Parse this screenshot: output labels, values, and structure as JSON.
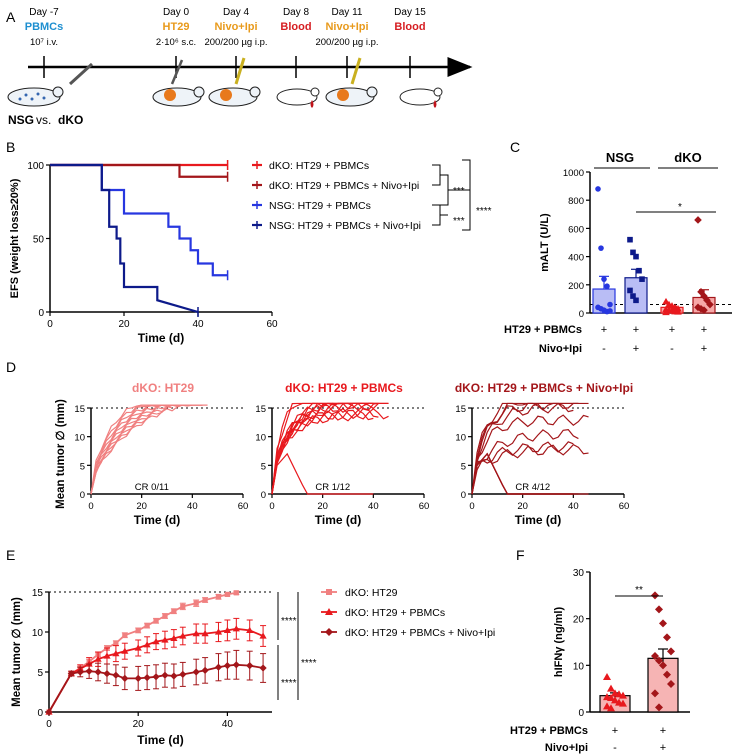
{
  "colors": {
    "light_red": "#f08080",
    "red": "#e8191e",
    "dark_red": "#a3161a",
    "blue": "#2737e0",
    "navy": "#0d1a8a",
    "blood": "#d61e22",
    "orange": "#e89a1c",
    "teal": "#1e8fd0",
    "nsg_bar": "#b9bdf5",
    "dko_bar": "#f7a8a8",
    "f_bar": "#f6b4b4"
  },
  "panel_labels": [
    "A",
    "B",
    "C",
    "D",
    "E",
    "F"
  ],
  "panel_a": {
    "events": [
      {
        "day": "Day -7",
        "label": "PBMCs",
        "label_color": "#1e8fd0",
        "detail": "10⁷ i.v."
      },
      {
        "day": "Day 0",
        "label": "HT29",
        "label_color": "#e89a1c",
        "detail": "2·10⁶ s.c."
      },
      {
        "day": "Day 4",
        "label": "Nivo+Ipi",
        "label_color": "#e89a1c",
        "detail": "200/200 µg i.p."
      },
      {
        "day": "Day 8",
        "label": "Blood",
        "label_color": "#d61e22",
        "detail": ""
      },
      {
        "day": "Day 11",
        "label": "Nivo+Ipi",
        "label_color": "#e89a1c",
        "detail": "200/200 µg i.p."
      },
      {
        "day": "Day 15",
        "label": "Blood",
        "label_color": "#d61e22",
        "detail": ""
      }
    ],
    "mouse_label_a": "NSG",
    "mouse_label_vs": "vs.",
    "mouse_label_b": "dKO"
  },
  "chart_data": [
    {
      "id": "B",
      "type": "line",
      "subtype": "kaplan-meier",
      "xlabel": "Time (d)",
      "ylabel": "EFS (weight loss≥20%)",
      "xlim": [
        0,
        60
      ],
      "ylim": [
        0,
        100
      ],
      "xticks": [
        "0",
        "20",
        "40",
        "60"
      ],
      "yticks": [
        "0",
        "50",
        "100"
      ],
      "series": [
        {
          "name": "dKO: HT29 + PBMCs",
          "color": "#e8191e",
          "x": [
            0,
            48
          ],
          "y": [
            100,
            100
          ]
        },
        {
          "name": "dKO: HT29 + PBMCs + Nivo+Ipi",
          "color": "#a3161a",
          "x": [
            0,
            35,
            35,
            48
          ],
          "y": [
            100,
            100,
            92,
            92
          ]
        },
        {
          "name": "NSG: HT29 + PBMCs",
          "color": "#2737e0",
          "x": [
            0,
            14,
            14,
            20,
            20,
            22,
            22,
            32,
            32,
            35,
            35,
            38,
            38,
            40,
            40,
            44,
            44,
            48
          ],
          "y": [
            100,
            100,
            83,
            83,
            67,
            67,
            67,
            67,
            58,
            58,
            50,
            50,
            42,
            42,
            33,
            33,
            25,
            25
          ]
        },
        {
          "name": "NSG: HT29 + PBMCs + Nivo+Ipi",
          "color": "#0d1a8a",
          "x": [
            0,
            14,
            14,
            16,
            16,
            18,
            18,
            19,
            19,
            20,
            20,
            22,
            22,
            29,
            29,
            40
          ],
          "y": [
            100,
            100,
            83,
            83,
            58,
            58,
            50,
            50,
            33,
            33,
            17,
            17,
            17,
            17,
            8,
            0
          ]
        }
      ],
      "stats": [
        "***",
        "***",
        "****"
      ]
    },
    {
      "id": "C",
      "type": "bar",
      "ylabel": "mALT (U/L)",
      "ylim": [
        0,
        1000
      ],
      "yticks": [
        "0",
        "200",
        "400",
        "600",
        "800",
        "1000"
      ],
      "groups": [
        "NSG",
        "dKO"
      ],
      "rows": [
        {
          "label": "HT29 + PBMCs",
          "marks": [
            "+",
            "+",
            "+",
            "+"
          ]
        },
        {
          "label": "Nivo+Ipi",
          "marks": [
            "-",
            "+",
            "-",
            "+"
          ]
        }
      ],
      "bars": [
        {
          "group": "NSG",
          "treatment": "HT29 + PBMCs",
          "mean": 170,
          "sem": 90,
          "points": [
            880,
            460,
            240,
            190,
            60,
            40,
            30,
            20,
            10,
            15
          ]
        },
        {
          "group": "NSG",
          "treatment": "HT29 + PBMCs + Nivo+Ipi",
          "mean": 250,
          "sem": 60,
          "points": [
            520,
            430,
            400,
            300,
            240,
            160,
            120,
            90
          ]
        },
        {
          "group": "dKO",
          "treatment": "HT29 + PBMCs",
          "mean": 40,
          "sem": 8,
          "points": [
            80,
            60,
            50,
            40,
            30,
            25,
            20,
            15,
            10,
            8,
            5
          ]
        },
        {
          "group": "dKO",
          "treatment": "HT29 + PBMCs + Nivo+Ipi",
          "mean": 110,
          "sem": 55,
          "points": [
            660,
            150,
            120,
            90,
            60,
            40,
            30,
            20
          ]
        }
      ],
      "reference_line": 60,
      "stats": [
        "*"
      ]
    },
    {
      "id": "D",
      "type": "line",
      "subtype": "spaghetti",
      "ylabel": "Mean tumor ∅ (mm)",
      "panels": [
        {
          "title": "dKO: HT29",
          "color": "#f08080",
          "cr": "CR 0/11",
          "xlabel": "Time (d)",
          "xlim": [
            0,
            60
          ],
          "ylim": [
            0,
            15
          ],
          "xticks": [
            "0",
            "20",
            "40",
            "60"
          ],
          "yticks": [
            "0",
            "5",
            "10",
            "15"
          ]
        },
        {
          "title": "dKO: HT29 + PBMCs",
          "color": "#e8191e",
          "cr": "CR 1/12",
          "xlabel": "Time (d)",
          "xlim": [
            0,
            60
          ],
          "ylim": [
            0,
            15
          ],
          "xticks": [
            "0",
            "20",
            "40",
            "60"
          ],
          "yticks": [
            "0",
            "5",
            "10",
            "15"
          ]
        },
        {
          "title": "dKO: HT29 + PBMCs + Nivo+Ipi",
          "color": "#a3161a",
          "cr": "CR 4/12",
          "xlabel": "Time (d)",
          "xlim": [
            0,
            60
          ],
          "ylim": [
            0,
            15
          ],
          "xticks": [
            "0",
            "20",
            "40",
            "60"
          ],
          "yticks": [
            "0",
            "5",
            "10",
            "15"
          ]
        }
      ]
    },
    {
      "id": "E",
      "type": "line",
      "xlabel": "Time (d)",
      "ylabel": "Mean tumor ∅ (mm)",
      "xlim": [
        0,
        50
      ],
      "ylim": [
        0,
        15
      ],
      "xticks": [
        "0",
        "20",
        "40"
      ],
      "yticks": [
        "0",
        "5",
        "10",
        "15"
      ],
      "x": [
        0,
        5,
        7,
        9,
        11,
        13,
        15,
        17,
        20,
        22,
        24,
        26,
        28,
        30,
        33,
        35,
        38,
        40,
        42,
        45,
        48
      ],
      "series": [
        {
          "name": "dKO: HT29",
          "color": "#f08080",
          "marker": "square",
          "x": [
            0,
            5,
            7,
            9,
            11,
            13,
            15,
            17,
            20,
            22,
            24,
            26,
            28,
            30,
            33,
            35,
            38,
            40,
            42
          ],
          "y": [
            0,
            4.8,
            5.5,
            6.3,
            7.2,
            8.0,
            8.6,
            9.6,
            10.2,
            10.8,
            11.4,
            12.0,
            12.6,
            13.2,
            13.6,
            14.0,
            14.4,
            14.7,
            14.9
          ],
          "err": [
            0,
            0.2,
            0.2,
            0.3,
            0.3,
            0.3,
            0.3,
            0.3,
            0.3,
            0.3,
            0.3,
            0.3,
            0.3,
            0.4,
            0.4,
            0.3,
            0.3,
            0.2,
            0.2
          ]
        },
        {
          "name": "dKO: HT29 + PBMCs",
          "color": "#e8191e",
          "marker": "triangle",
          "x": [
            0,
            5,
            7,
            9,
            11,
            13,
            15,
            17,
            20,
            22,
            24,
            26,
            28,
            30,
            33,
            35,
            38,
            40,
            42,
            45,
            48
          ],
          "y": [
            0,
            4.8,
            5.4,
            6.0,
            6.6,
            7.0,
            7.3,
            7.6,
            8.0,
            8.4,
            8.8,
            9.0,
            9.2,
            9.5,
            9.8,
            9.8,
            10.0,
            10.2,
            10.4,
            10.2,
            9.5
          ],
          "err": [
            0,
            0.3,
            0.5,
            0.8,
            0.9,
            1.0,
            1.0,
            1.0,
            1.0,
            1.0,
            1.0,
            1.1,
            1.1,
            1.1,
            1.2,
            1.2,
            1.2,
            1.3,
            1.3,
            1.3,
            1.3
          ]
        },
        {
          "name": "dKO: HT29 + PBMCs + Nivo+Ipi",
          "color": "#a3161a",
          "marker": "diamond",
          "x": [
            0,
            5,
            7,
            9,
            11,
            13,
            15,
            17,
            20,
            22,
            24,
            26,
            28,
            30,
            33,
            35,
            38,
            40,
            42,
            45,
            48
          ],
          "y": [
            0,
            4.8,
            5.0,
            5.1,
            5.0,
            4.8,
            4.6,
            4.2,
            4.2,
            4.3,
            4.4,
            4.6,
            4.5,
            4.7,
            5.0,
            5.2,
            5.6,
            5.8,
            5.9,
            5.8,
            5.5
          ],
          "err": [
            0,
            0.3,
            0.6,
            0.9,
            1.1,
            1.2,
            1.3,
            1.4,
            1.5,
            1.5,
            1.5,
            1.5,
            1.5,
            1.5,
            1.6,
            1.6,
            1.7,
            1.7,
            1.8,
            1.8,
            1.8
          ]
        }
      ],
      "stats": [
        "****",
        "****",
        "****"
      ]
    },
    {
      "id": "F",
      "type": "bar",
      "ylabel": "hIFNγ (ng/ml)",
      "ylim": [
        0,
        30
      ],
      "yticks": [
        "0",
        "10",
        "20",
        "30"
      ],
      "rows": [
        {
          "label": "HT29 + PBMCs",
          "marks": [
            "+",
            "+"
          ]
        },
        {
          "label": "Nivo+Ipi",
          "marks": [
            "-",
            "+"
          ]
        }
      ],
      "bars": [
        {
          "treatment": "HT29 + PBMCs",
          "mean": 3.5,
          "sem": 0.6,
          "points": [
            7.5,
            5.0,
            4.0,
            3.8,
            3.5,
            3.2,
            3.0,
            2.5,
            2.0,
            1.8,
            1.2,
            0.8
          ]
        },
        {
          "treatment": "HT29 + PBMCs + Nivo+Ipi",
          "mean": 11.5,
          "sem": 2.0,
          "points": [
            25,
            22,
            19,
            16,
            13,
            12,
            11,
            10,
            8,
            6,
            4,
            1
          ]
        }
      ],
      "stats": [
        "**"
      ]
    }
  ]
}
